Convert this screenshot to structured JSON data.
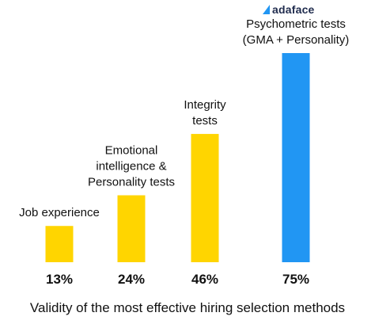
{
  "brand": {
    "name": "adaface",
    "color": "#2196f3"
  },
  "chart_data": {
    "type": "bar",
    "title": "Validity of the most effective hiring selection methods",
    "categories": [
      [
        "Job experience"
      ],
      [
        "Emotional",
        "intelligence &",
        "Personality tests"
      ],
      [
        "Integrity",
        "tests"
      ],
      [
        "Psychometric tests",
        "(GMA + Personality)"
      ]
    ],
    "values": [
      13,
      24,
      46,
      75
    ],
    "value_labels": [
      "13%",
      "24%",
      "46%",
      "75%"
    ],
    "colors": [
      "#ffd500",
      "#ffd500",
      "#ffd500",
      "#2196f3"
    ],
    "ylim": [
      0,
      75
    ],
    "xlabel": "",
    "ylabel": "",
    "grid": false,
    "legend": "none"
  }
}
